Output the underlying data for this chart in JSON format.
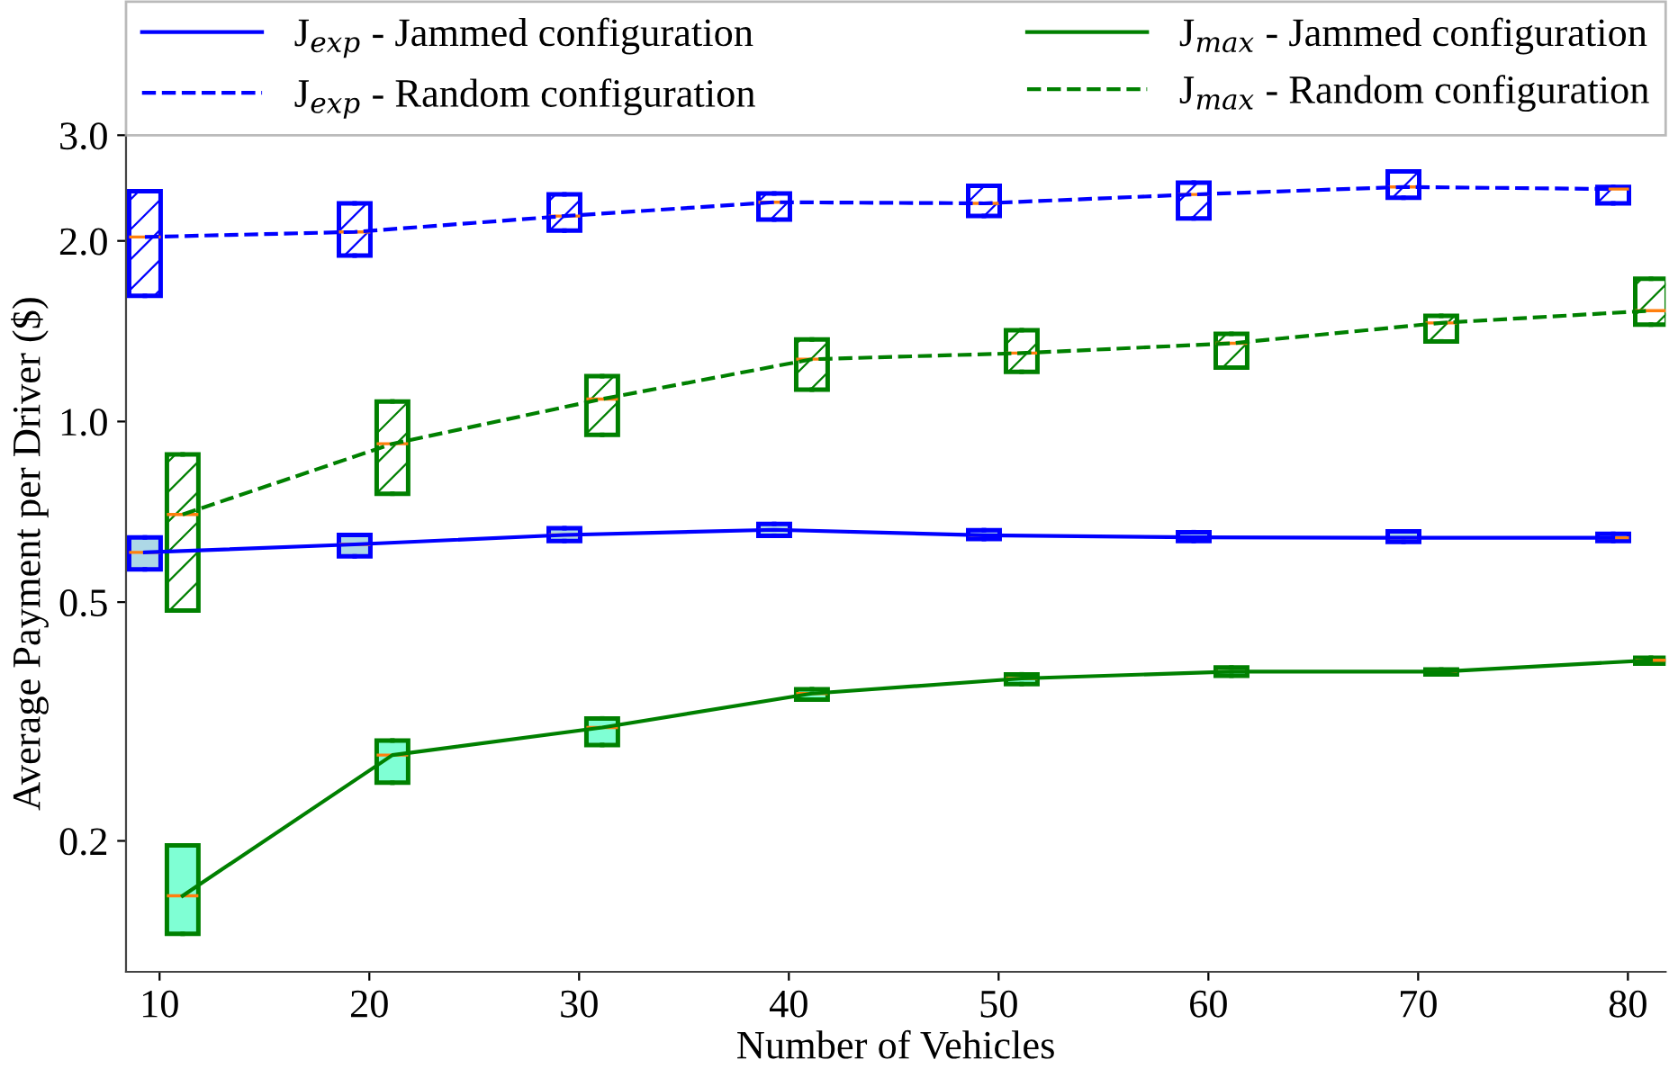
{
  "chart_data": {
    "type": "box",
    "xlabel": "Number of Vehicles",
    "ylabel": "Average Payment per Driver ($)",
    "log": "y",
    "xlim": [
      8.4,
      81.8
    ],
    "ylim": [
      0.121,
      3.0
    ],
    "xticks": [
      10,
      20,
      30,
      40,
      50,
      60,
      70,
      80
    ],
    "yticks": [
      {
        "value": 0.2,
        "label": "0.2"
      },
      {
        "value": 0.5,
        "label": "0.5"
      },
      {
        "value": 1.0,
        "label": "1.0"
      },
      {
        "value": 2.0,
        "label": "2.0"
      },
      {
        "value": 3.0,
        "label": "3.0"
      }
    ],
    "legend": "top",
    "grid": false,
    "series": [
      {
        "type": "line",
        "name": "J$_{exp}$ - Jammed configuration",
        "color": "#0000ff",
        "line_style": "solid",
        "x": [
          9.3,
          19.3,
          29.3,
          39.3,
          49.3,
          59.3,
          69.3,
          79.3
        ],
        "values": [
          0.605,
          0.624,
          0.647,
          0.66,
          0.646,
          0.641,
          0.64,
          0.64
        ]
      },
      {
        "type": "line",
        "name": "J$_{exp}$ - Random configuration",
        "color": "#0000ff",
        "line_style": "dashed",
        "x": [
          9.3,
          19.3,
          29.3,
          39.3,
          49.3,
          59.3,
          69.3,
          79.3
        ],
        "values": [
          2.03,
          2.07,
          2.2,
          2.32,
          2.31,
          2.39,
          2.46,
          2.44
        ]
      },
      {
        "type": "line",
        "name": "J$_{max}$ - Jammed configuration",
        "color": "#008000",
        "line_style": "solid",
        "x": [
          11.1,
          21.1,
          31.1,
          41.1,
          51.1,
          61.1,
          71.1,
          81.1
        ],
        "values": [
          0.162,
          0.278,
          0.309,
          0.352,
          0.373,
          0.383,
          0.383,
          0.4
        ]
      },
      {
        "type": "line",
        "name": "J$_{max}$ - Random configuration",
        "color": "#008000",
        "line_style": "dashed",
        "x": [
          11.1,
          21.1,
          31.1,
          41.1,
          51.1,
          61.1,
          71.1,
          81.1
        ],
        "values": [
          0.7,
          0.918,
          1.09,
          1.27,
          1.3,
          1.35,
          1.46,
          1.53
        ]
      },
      {
        "color": "#0000ff",
        "line_style": "solid",
        "colors": [
          "#add8e6",
          "#add8e6",
          "#add8e6",
          "#add8e6",
          "#add8e6",
          "#add8e6",
          "#add8e6",
          "#add8e6"
        ],
        "x": [
          9.3,
          19.3,
          29.3,
          39.3,
          49.3,
          59.3,
          69.3,
          79.3
        ],
        "boxes": [
          {
            "low": 0.567,
            "q1": 0.567,
            "median": 0.605,
            "q3": 0.641,
            "high": 0.641
          },
          {
            "low": 0.596,
            "q1": 0.596,
            "median": 0.624,
            "q3": 0.647,
            "high": 0.647
          },
          {
            "low": 0.632,
            "q1": 0.632,
            "median": 0.647,
            "q3": 0.664,
            "high": 0.664
          },
          {
            "low": 0.645,
            "q1": 0.645,
            "median": 0.66,
            "q3": 0.675,
            "high": 0.675
          },
          {
            "low": 0.637,
            "q1": 0.637,
            "median": 0.646,
            "q3": 0.659,
            "high": 0.659
          },
          {
            "low": 0.632,
            "q1": 0.632,
            "median": 0.641,
            "q3": 0.654,
            "high": 0.654
          },
          {
            "low": 0.63,
            "q1": 0.63,
            "median": 0.64,
            "q3": 0.656,
            "high": 0.656
          },
          {
            "low": 0.632,
            "q1": 0.632,
            "median": 0.64,
            "q3": 0.65,
            "high": 0.65
          }
        ]
      },
      {
        "color": "#0000ff",
        "line_style": "dashed",
        "x": [
          9.3,
          19.3,
          29.3,
          39.3,
          49.3,
          59.3,
          69.3,
          79.3
        ],
        "boxes": [
          {
            "low": 1.62,
            "q1": 1.62,
            "median": 2.03,
            "q3": 2.42,
            "high": 2.42
          },
          {
            "low": 1.89,
            "q1": 1.89,
            "median": 2.07,
            "q3": 2.31,
            "high": 2.31
          },
          {
            "low": 2.08,
            "q1": 2.08,
            "median": 2.2,
            "q3": 2.39,
            "high": 2.39
          },
          {
            "low": 2.17,
            "q1": 2.17,
            "median": 2.32,
            "q3": 2.4,
            "high": 2.4
          },
          {
            "low": 2.2,
            "q1": 2.2,
            "median": 2.31,
            "q3": 2.47,
            "high": 2.47
          },
          {
            "low": 2.18,
            "q1": 2.18,
            "median": 2.39,
            "q3": 2.5,
            "high": 2.5
          },
          {
            "low": 2.36,
            "q1": 2.36,
            "median": 2.46,
            "q3": 2.61,
            "high": 2.61
          },
          {
            "low": 2.31,
            "q1": 2.31,
            "median": 2.44,
            "q3": 2.46,
            "high": 2.46
          }
        ]
      },
      {
        "color": "#008000",
        "line_style": "solid",
        "colors": [
          "#7fffd4",
          "#7fffd4",
          "#7fffd4",
          "#7fffd4",
          "#7fffd4",
          "#7fffd4",
          "#7fffd4",
          "#7fffd4"
        ],
        "x": [
          11.1,
          21.1,
          31.1,
          41.1,
          51.1,
          61.1,
          71.1,
          81.1
        ],
        "boxes": [
          {
            "low": 0.14,
            "q1": 0.14,
            "median": 0.162,
            "q3": 0.1965,
            "high": 0.1965
          },
          {
            "low": 0.25,
            "q1": 0.25,
            "median": 0.278,
            "q3": 0.294,
            "high": 0.294
          },
          {
            "low": 0.289,
            "q1": 0.289,
            "median": 0.309,
            "q3": 0.32,
            "high": 0.32
          },
          {
            "low": 0.344,
            "q1": 0.344,
            "median": 0.352,
            "q3": 0.358,
            "high": 0.358
          },
          {
            "low": 0.365,
            "q1": 0.365,
            "median": 0.373,
            "q3": 0.379,
            "high": 0.379
          },
          {
            "low": 0.377,
            "q1": 0.377,
            "median": 0.383,
            "q3": 0.389,
            "high": 0.389
          },
          {
            "low": 0.379,
            "q1": 0.379,
            "median": 0.383,
            "q3": 0.386,
            "high": 0.386
          },
          {
            "low": 0.395,
            "q1": 0.395,
            "median": 0.4,
            "q3": 0.404,
            "high": 0.404
          }
        ]
      },
      {
        "color": "#008000",
        "line_style": "dashed",
        "x": [
          11.1,
          21.1,
          31.1,
          41.1,
          51.1,
          61.1,
          71.1,
          81.1
        ],
        "boxes": [
          {
            "low": 0.484,
            "q1": 0.484,
            "median": 0.7,
            "q3": 0.881,
            "high": 0.881
          },
          {
            "low": 0.758,
            "q1": 0.758,
            "median": 0.918,
            "q3": 1.08,
            "high": 1.08
          },
          {
            "low": 0.95,
            "q1": 0.95,
            "median": 1.09,
            "q3": 1.19,
            "high": 1.19
          },
          {
            "low": 1.13,
            "q1": 1.13,
            "median": 1.27,
            "q3": 1.37,
            "high": 1.37
          },
          {
            "low": 1.21,
            "q1": 1.21,
            "median": 1.3,
            "q3": 1.42,
            "high": 1.42
          },
          {
            "low": 1.23,
            "q1": 1.23,
            "median": 1.35,
            "q3": 1.4,
            "high": 1.4
          },
          {
            "low": 1.36,
            "q1": 1.36,
            "median": 1.46,
            "q3": 1.5,
            "high": 1.5
          },
          {
            "low": 1.45,
            "q1": 1.45,
            "median": 1.53,
            "q3": 1.73,
            "high": 1.73
          }
        ]
      }
    ]
  }
}
